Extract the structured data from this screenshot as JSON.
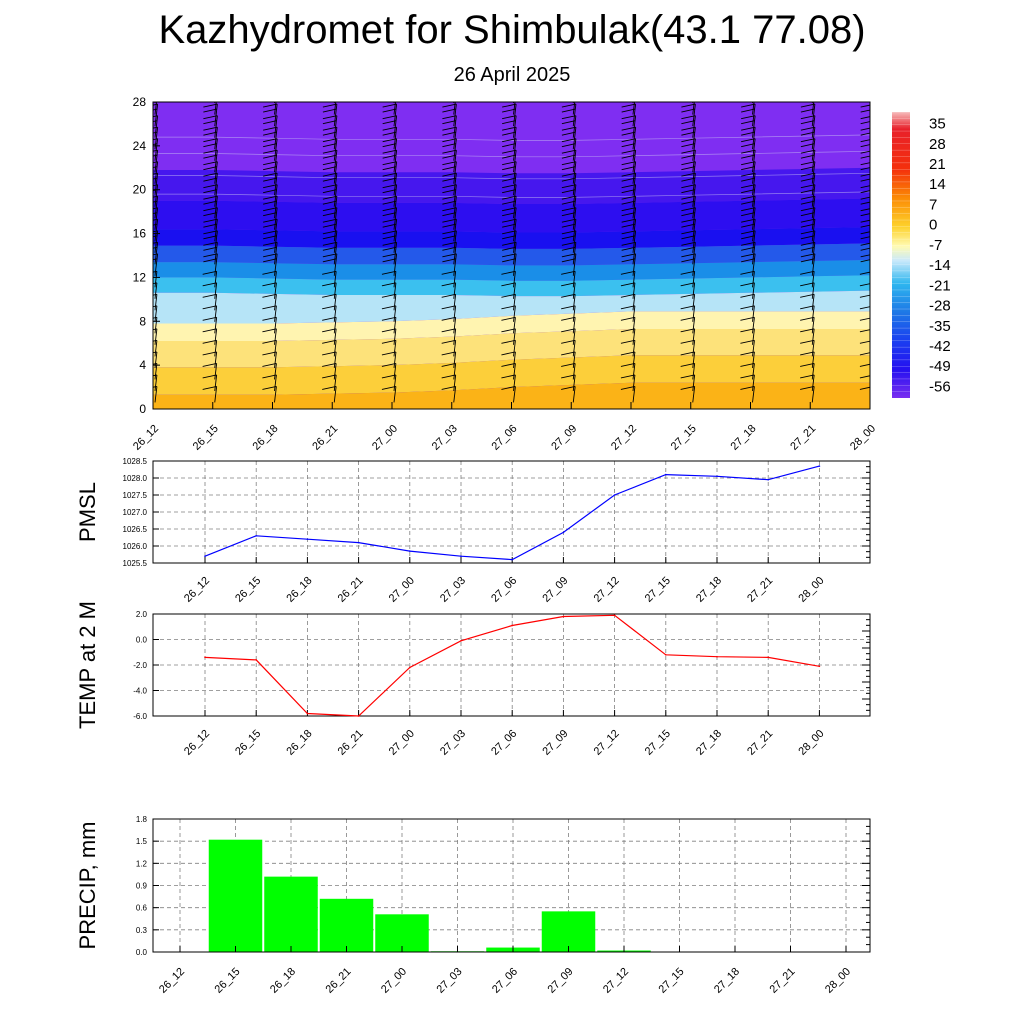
{
  "header": {
    "title": "Kazhydromet for Shimbulak(43.1 77.08)",
    "subtitle": "26 April 2025"
  },
  "time_labels": [
    "26_12",
    "26_15",
    "26_18",
    "26_21",
    "27_00",
    "27_03",
    "27_06",
    "27_09",
    "27_12",
    "27_15",
    "27_18",
    "27_21",
    "28_00"
  ],
  "colors": {
    "pmsl_line": "#0000ff",
    "temp_line": "#ff0000",
    "precip_bar": "#00ff00",
    "grid": "#808080"
  },
  "chart_data": [
    {
      "type": "heatmap",
      "name": "temperature_wind_cross_section",
      "title": "",
      "xlabel": "",
      "ylabel": "",
      "x": [
        "26_12",
        "26_15",
        "26_18",
        "26_21",
        "27_00",
        "27_03",
        "27_06",
        "27_09",
        "27_12",
        "27_15",
        "27_18",
        "27_21",
        "28_00"
      ],
      "y_ticks": [
        0,
        4,
        8,
        12,
        16,
        20,
        24,
        28
      ],
      "ylim": [
        0,
        28
      ],
      "colorbar": {
        "labels": [
          "35",
          "28",
          "21",
          "14",
          "7",
          "0",
          "-7",
          "-14",
          "-21",
          "-28",
          "-35",
          "-42",
          "-49",
          "-56"
        ],
        "range": [
          -60,
          39
        ]
      },
      "transition_levels": {
        "warm_top": [
          7.8,
          7.8,
          7.8,
          7.9,
          8.0,
          8.2,
          8.5,
          8.7,
          8.9,
          8.9,
          8.9,
          8.9,
          8.9
        ],
        "jet_core": [
          15.8,
          15.8,
          15.7,
          15.6,
          15.6,
          15.6,
          15.5,
          15.5,
          15.6,
          15.7,
          15.8,
          15.9,
          16.0
        ]
      }
    },
    {
      "type": "line",
      "name": "pmsl",
      "ylabel": "PMSL",
      "categories": [
        "26_12",
        "26_15",
        "26_18",
        "26_21",
        "27_00",
        "27_03",
        "27_06",
        "27_09",
        "27_12",
        "27_15",
        "27_18",
        "27_21",
        "28_00"
      ],
      "values": [
        1025.7,
        1026.3,
        1026.2,
        1026.1,
        1025.85,
        1025.7,
        1025.6,
        1026.4,
        1027.5,
        1028.1,
        1028.05,
        1027.95,
        1028.35
      ],
      "ylim": [
        1025.5,
        1028.5
      ],
      "y_ticks": [
        "1025.5",
        "1026.0",
        "1026.5",
        "1027.0",
        "1027.5",
        "1028.0",
        "1028.5"
      ],
      "grid": true
    },
    {
      "type": "line",
      "name": "temp2m",
      "ylabel": "TEMP at 2 M",
      "categories": [
        "26_12",
        "26_15",
        "26_18",
        "26_21",
        "27_00",
        "27_03",
        "27_06",
        "27_09",
        "27_12",
        "27_15",
        "27_18",
        "27_21",
        "28_00"
      ],
      "values": [
        -1.4,
        -1.6,
        -5.8,
        -6.0,
        -2.2,
        -0.1,
        1.1,
        1.8,
        1.9,
        -1.2,
        -1.35,
        -1.4,
        -2.1
      ],
      "ylim": [
        -6,
        2
      ],
      "y_ticks": [
        "-6.0",
        "-4.0",
        "-2.0",
        "0.0",
        "2.0"
      ],
      "grid": true
    },
    {
      "type": "bar",
      "name": "precip",
      "ylabel": "PRECIP, mm",
      "categories": [
        "26_12",
        "26_15",
        "26_18",
        "26_21",
        "27_00",
        "27_03",
        "27_06",
        "27_09",
        "27_12",
        "27_15",
        "27_18",
        "27_21",
        "28_00"
      ],
      "values": [
        0,
        1.52,
        1.02,
        0.72,
        0.51,
        0.01,
        0.06,
        0.55,
        0.02,
        0,
        0,
        0,
        0
      ],
      "ylim": [
        0,
        1.8
      ],
      "y_ticks": [
        "0.0",
        "0.3",
        "0.6",
        "0.9",
        "1.2",
        "1.5",
        "1.8"
      ],
      "grid": true
    }
  ]
}
